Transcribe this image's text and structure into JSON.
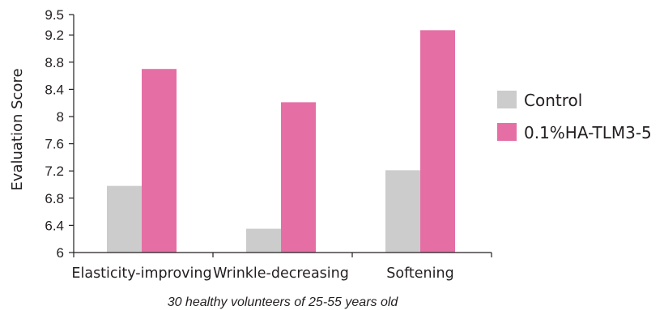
{
  "chart_data": {
    "type": "bar",
    "categories": [
      "Elasticity-improving",
      "Wrinkle-decreasing",
      "Softening"
    ],
    "series": [
      {
        "name": "Control",
        "values": [
          6.98,
          6.35,
          7.21
        ],
        "color": "#cccccc"
      },
      {
        "name": "0.1%HA-TLM3-5",
        "values": [
          8.7,
          8.21,
          9.27
        ],
        "color": "#e56fa5"
      }
    ],
    "ylabel": "Evaluation Score",
    "xlabel": "30 healthy volunteers of 25-55 years old",
    "ylim": [
      6,
      9.5
    ],
    "yticks": [
      "6",
      "6.4",
      "6.8",
      "7.2",
      "7.6",
      "8",
      "8.4",
      "8.8",
      "9.2",
      "9.5"
    ],
    "grid": false,
    "legend_position": "right"
  }
}
